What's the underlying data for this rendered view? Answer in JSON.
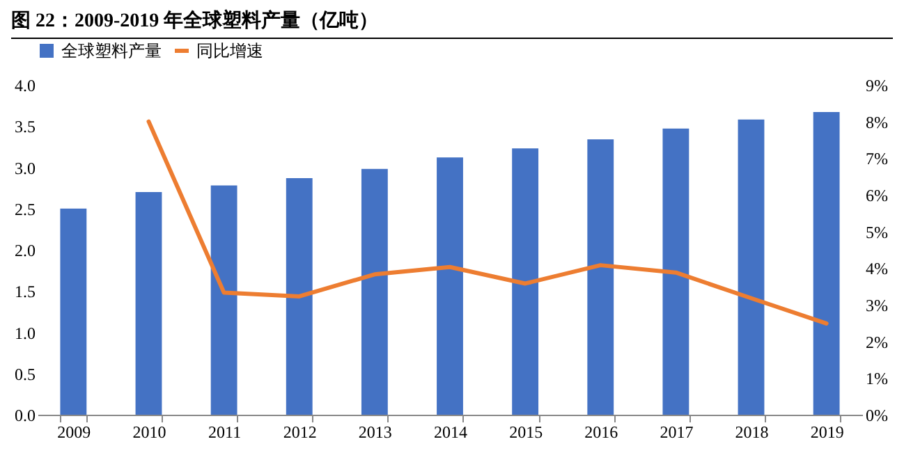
{
  "chart_data": {
    "type": "bar",
    "title": "图  22：2009-2019 年全球塑料产量（亿吨）",
    "categories": [
      "2009",
      "2010",
      "2011",
      "2012",
      "2013",
      "2014",
      "2015",
      "2016",
      "2017",
      "2018",
      "2019"
    ],
    "series": [
      {
        "name": "全球塑料产量",
        "color": "#4472c4",
        "values": [
          2.5,
          2.7,
          2.78,
          2.87,
          2.98,
          3.12,
          3.23,
          3.34,
          3.47,
          3.58,
          3.67
        ]
      },
      {
        "name": "同比增速",
        "type": "line",
        "axis": "y2",
        "color": "#ed7d31",
        "values": [
          null,
          8.0,
          3.33,
          3.23,
          3.83,
          4.03,
          3.58,
          4.08,
          3.88,
          3.18,
          2.49
        ]
      }
    ],
    "ylim": [
      0,
      4
    ],
    "yticks": [
      {
        "value": 0,
        "label": "0.0"
      },
      0.5,
      {
        "value": 1,
        "label": "1.0"
      },
      1.5,
      {
        "value": 2,
        "label": "2.0"
      },
      2.5,
      {
        "value": 3,
        "label": "3.0"
      },
      3.5,
      {
        "value": 4,
        "label": "4.0"
      }
    ],
    "y2lim": [
      0,
      9
    ],
    "y2ticks": [
      {
        "value": 0,
        "label": "0%"
      },
      {
        "value": 1,
        "label": "1%"
      },
      {
        "value": 2,
        "label": "2%"
      },
      {
        "value": 3,
        "label": "3%"
      },
      {
        "value": 4,
        "label": "4%"
      },
      {
        "value": 5,
        "label": "5%"
      },
      {
        "value": 6,
        "label": "6%"
      },
      {
        "value": 7,
        "label": "7%"
      },
      {
        "value": 8,
        "label": "8%"
      },
      {
        "value": 9,
        "label": "9%"
      }
    ],
    "legend": "top",
    "grid": false
  }
}
